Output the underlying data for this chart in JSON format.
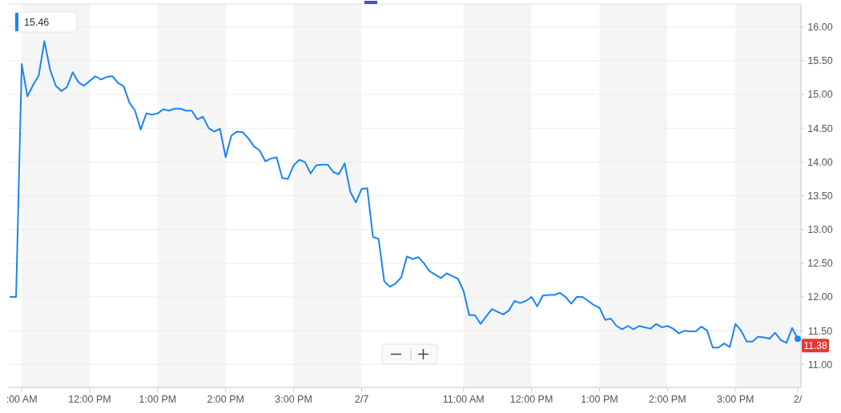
{
  "chart_data": {
    "type": "line",
    "categories": [
      null,
      null,
      ":00 AM",
      null,
      null,
      null,
      null,
      null,
      null,
      null,
      null,
      null,
      null,
      null,
      "12:00 PM",
      null,
      null,
      null,
      null,
      null,
      null,
      null,
      null,
      null,
      null,
      null,
      "1:00 PM",
      null,
      null,
      null,
      null,
      null,
      null,
      null,
      null,
      null,
      null,
      null,
      "2:00 PM",
      null,
      null,
      null,
      null,
      null,
      null,
      null,
      null,
      null,
      null,
      null,
      "3:00 PM",
      null,
      null,
      null,
      null,
      null,
      null,
      null,
      null,
      null,
      null,
      null,
      "2/7",
      null,
      null,
      null,
      null,
      null,
      null,
      null,
      null,
      null,
      null,
      null,
      null,
      null,
      null,
      null,
      null,
      null,
      "11:00 AM",
      null,
      null,
      null,
      null,
      null,
      null,
      null,
      null,
      null,
      null,
      null,
      "12:00 PM",
      null,
      null,
      null,
      null,
      null,
      null,
      null,
      null,
      null,
      null,
      null,
      "1:00 PM",
      null,
      null,
      null,
      null,
      null,
      null,
      null,
      null,
      null,
      null,
      null,
      "2:00 PM",
      null,
      null,
      null,
      null,
      null,
      null,
      null,
      null,
      null,
      null,
      null,
      "3:00 PM",
      null,
      null,
      null,
      null,
      null,
      null,
      null,
      null,
      null,
      null,
      "2/"
    ],
    "series": [
      {
        "color": "#1a86f0",
        "values": [
          12.0,
          12.0,
          15.45,
          14.97,
          15.14,
          15.28,
          15.79,
          15.37,
          15.13,
          15.05,
          15.11,
          15.33,
          15.18,
          15.13,
          15.2,
          15.27,
          15.22,
          15.26,
          15.27,
          15.17,
          15.12,
          14.88,
          14.76,
          14.48,
          14.72,
          14.7,
          14.72,
          14.78,
          14.76,
          14.79,
          14.79,
          14.76,
          14.76,
          14.63,
          14.67,
          14.5,
          14.45,
          14.49,
          14.07,
          14.39,
          14.45,
          14.44,
          14.35,
          14.23,
          14.17,
          14.01,
          14.05,
          14.07,
          13.76,
          13.75,
          13.95,
          14.03,
          14.0,
          13.83,
          13.95,
          13.96,
          13.96,
          13.85,
          13.82,
          13.98,
          13.56,
          13.4,
          13.6,
          13.61,
          12.89,
          12.86,
          12.23,
          12.15,
          12.2,
          12.29,
          12.6,
          12.56,
          12.59,
          12.5,
          12.38,
          12.33,
          12.28,
          12.35,
          12.31,
          12.27,
          12.09,
          11.73,
          11.73,
          11.6,
          11.71,
          11.82,
          11.78,
          11.74,
          11.8,
          11.94,
          11.91,
          11.94,
          12.0,
          11.86,
          12.02,
          12.03,
          12.03,
          12.06,
          12.0,
          11.9,
          12.0,
          12.0,
          11.94,
          11.88,
          11.84,
          11.66,
          11.68,
          11.57,
          11.52,
          11.57,
          11.52,
          11.57,
          11.55,
          11.53,
          11.6,
          11.55,
          11.57,
          11.53,
          11.46,
          11.5,
          11.49,
          11.49,
          11.56,
          11.5,
          11.25,
          11.25,
          11.31,
          11.26,
          11.6,
          11.5,
          11.34,
          11.34,
          11.41,
          11.4,
          11.38,
          11.47,
          11.36,
          11.32,
          11.54,
          11.38
        ]
      }
    ],
    "ylim": [
      10.66,
      16.34
    ],
    "yticks": [
      {
        "value": 11,
        "label": "11.00"
      },
      {
        "value": 11.5,
        "label": "11.50"
      },
      {
        "value": 12,
        "label": "12.00"
      },
      {
        "value": 12.5,
        "label": "12.50"
      },
      {
        "value": 13,
        "label": "13.00"
      },
      {
        "value": 13.5,
        "label": "13.50"
      },
      {
        "value": 14,
        "label": "14.00"
      },
      {
        "value": 14.5,
        "label": "14.50"
      },
      {
        "value": 15,
        "label": "15.00"
      },
      {
        "value": 15.5,
        "label": "15.50"
      },
      {
        "value": 16,
        "label": "16.00"
      }
    ],
    "grid": "y",
    "marker": "none",
    "annotations": [
      "15.46",
      {
        "text": "11.38",
        "x": "2/",
        "y": 11.38
      }
    ]
  }
}
